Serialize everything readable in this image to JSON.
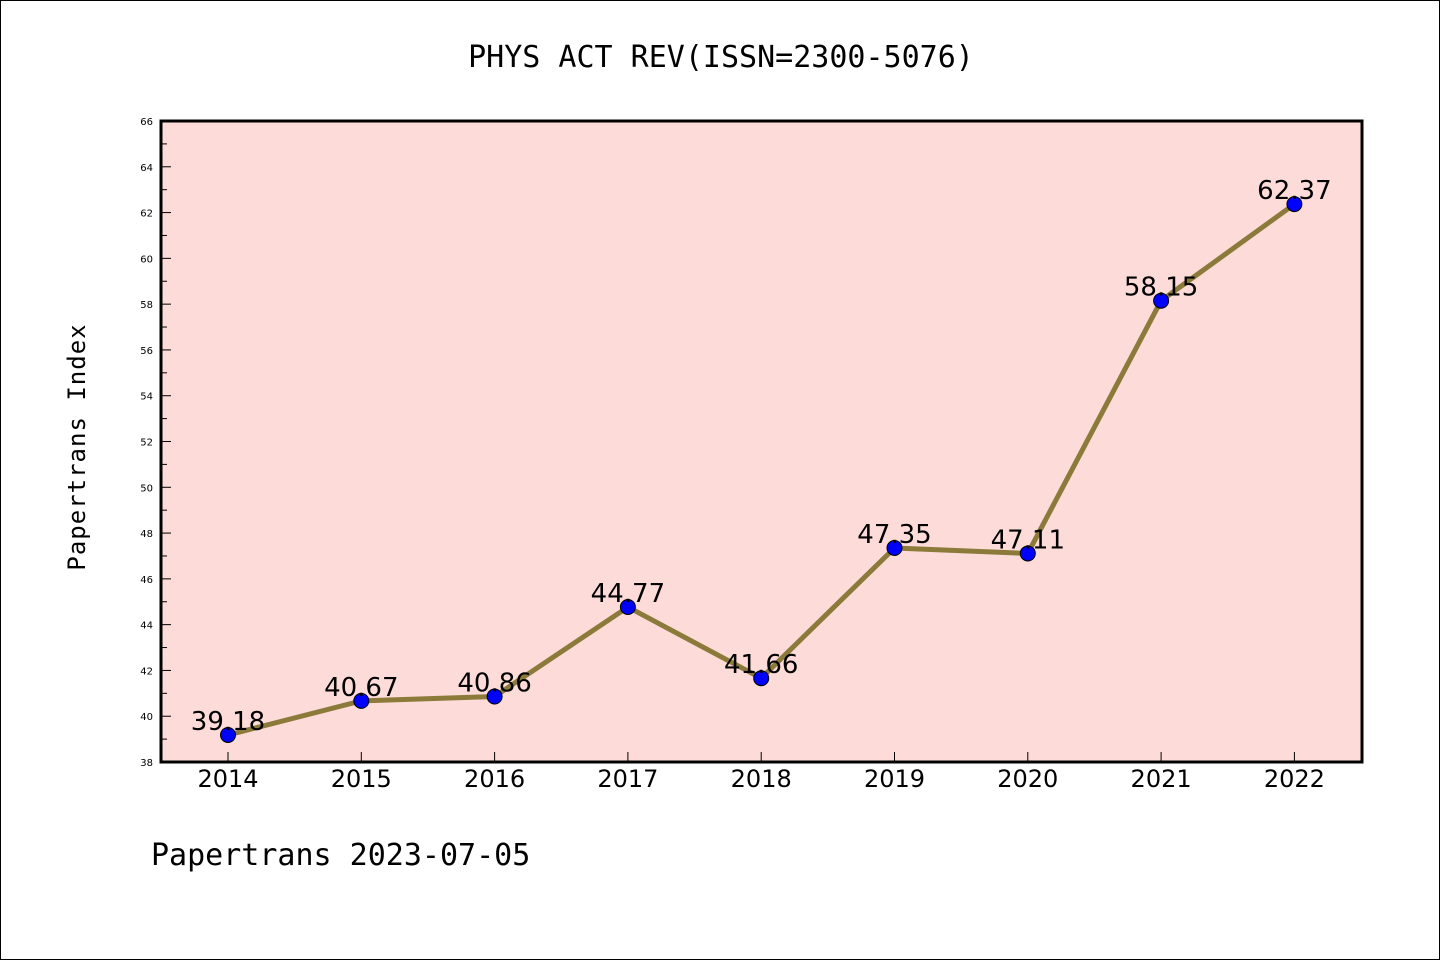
{
  "chart_data": {
    "type": "line",
    "title": "PHYS ACT REV(ISSN=2300-5076)",
    "xlabel": "",
    "ylabel": "Papertrans Index",
    "categories": [
      "2014",
      "2015",
      "2016",
      "2017",
      "2018",
      "2019",
      "2020",
      "2021",
      "2022"
    ],
    "values": [
      39.18,
      40.67,
      40.86,
      44.77,
      41.66,
      47.35,
      47.11,
      58.15,
      62.37
    ],
    "data_labels": [
      "39.18",
      "40.67",
      "40.86",
      "44.77",
      "41.66",
      "47.35",
      "47.11",
      "58.15",
      "62.37"
    ],
    "ylim": [
      38,
      66
    ],
    "yticks": [
      38,
      40,
      42,
      44,
      46,
      48,
      50,
      52,
      54,
      56,
      58,
      60,
      62,
      64,
      66
    ],
    "grid": false,
    "legend": "none",
    "colors": {
      "plot_background": "#fddbd8",
      "line": "#8b7a3a",
      "marker": "#0000ff",
      "axes": "#000000"
    }
  },
  "footer": "Papertrans 2023-07-05"
}
